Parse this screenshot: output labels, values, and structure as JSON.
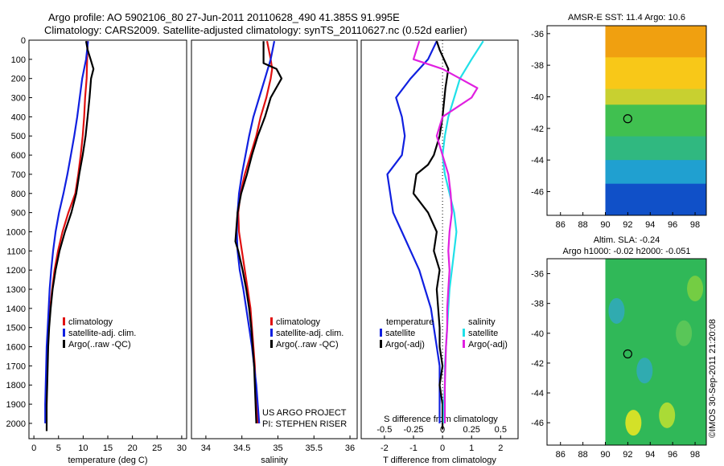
{
  "title_line1": "Argo profile: AO 5902106_80 27-Jun-2011 20110628_490 41.385S 91.995E",
  "title_line2": "Climatology: CARS2009. Satellite-adjusted climatology: synTS_20110627.nc (0.52d earlier)",
  "project_line1": "US ARGO PROJECT",
  "project_line2": "PI: STEPHEN RISER",
  "credit": "©IMOS 30-Sep-2011 21:20:08",
  "map1_title": "AMSR-E SST: 11.4 Argo: 10.6",
  "map2_title1": "Altim. SLA: -0.24",
  "map2_title2": "Argo h1000: -0.02 h2000: -0.051",
  "colors": {
    "red": "#e01010",
    "blue": "#1020e0",
    "black": "#000000",
    "cyan": "#20e0e8",
    "magenta": "#e020e0"
  },
  "chart_data": [
    {
      "type": "line",
      "xlabel": "temperature (deg C)",
      "ylabel": "",
      "xlim": [
        -1,
        31
      ],
      "ylim": [
        2080,
        0
      ],
      "xticks": [
        0,
        5,
        10,
        15,
        20,
        25,
        30
      ],
      "yticks": [
        0,
        100,
        200,
        300,
        400,
        500,
        600,
        700,
        800,
        900,
        1000,
        1100,
        1200,
        1300,
        1400,
        1500,
        1600,
        1700,
        1800,
        1900,
        2000
      ],
      "legend": [
        "climatology",
        "satellite-adj. clim.",
        "Argo(..raw -QC)"
      ],
      "series": [
        {
          "name": "climatology",
          "color": "red",
          "x": [
            10.9,
            10.8,
            10.7,
            10.4,
            10.2,
            9.9,
            9.5,
            9.0,
            8.4,
            7.0,
            5.8,
            4.9,
            4.2,
            3.7,
            3.3,
            3.0,
            2.8,
            2.7,
            2.6,
            2.6,
            2.5
          ],
          "y": [
            5,
            100,
            200,
            300,
            400,
            500,
            600,
            700,
            800,
            900,
            1000,
            1100,
            1200,
            1300,
            1400,
            1500,
            1600,
            1700,
            1800,
            1900,
            2000
          ]
        },
        {
          "name": "satellite-adj. clim.",
          "color": "blue",
          "x": [
            11.0,
            10.6,
            9.8,
            9.3,
            8.8,
            8.2,
            7.5,
            6.8,
            6.0,
            5.1,
            4.4,
            3.9,
            3.5,
            3.2,
            3.0,
            2.8,
            2.6,
            2.5,
            2.4,
            2.3,
            2.3
          ],
          "y": [
            5,
            100,
            200,
            300,
            400,
            500,
            600,
            700,
            800,
            900,
            1000,
            1100,
            1200,
            1300,
            1400,
            1500,
            1600,
            1700,
            1800,
            1900,
            2000
          ]
        },
        {
          "name": "Argo(..raw -QC)",
          "color": "black",
          "x": [
            10.6,
            10.9,
            11.5,
            12.1,
            11.6,
            11.3,
            10.9,
            10.5,
            9.9,
            9.2,
            8.6,
            7.6,
            6.3,
            5.2,
            4.4,
            3.8,
            3.4,
            3.1,
            2.9,
            2.8,
            2.7,
            2.6,
            2.6,
            2.6
          ],
          "y": [
            5,
            50,
            100,
            150,
            200,
            300,
            400,
            500,
            600,
            700,
            800,
            900,
            1000,
            1100,
            1200,
            1300,
            1400,
            1500,
            1600,
            1700,
            1800,
            1900,
            2000,
            2040
          ]
        }
      ]
    },
    {
      "type": "line",
      "xlabel": "salinity",
      "ylabel": "",
      "xlim": [
        33.8,
        36.1
      ],
      "ylim": [
        2080,
        0
      ],
      "xticks": [
        34,
        34.5,
        35,
        35.5,
        36
      ],
      "legend": [
        "climatology",
        "satellite-adj. clim.",
        "Argo(..raw -QC)"
      ],
      "series": [
        {
          "name": "climatology",
          "color": "red",
          "x": [
            34.85,
            34.9,
            34.92,
            34.9,
            34.84,
            34.76,
            34.7,
            34.62,
            34.54,
            34.48,
            34.45,
            34.46,
            34.5,
            34.54,
            34.58,
            34.62,
            34.64,
            34.66,
            34.68,
            34.69,
            34.7,
            34.72
          ],
          "y": [
            5,
            100,
            150,
            200,
            300,
            400,
            500,
            600,
            700,
            800,
            900,
            1000,
            1100,
            1200,
            1300,
            1400,
            1500,
            1600,
            1700,
            1800,
            1900,
            2000
          ]
        },
        {
          "name": "satellite-adj. clim.",
          "color": "blue",
          "x": [
            34.95,
            34.9,
            34.82,
            34.74,
            34.66,
            34.6,
            34.55,
            34.5,
            34.46,
            34.44,
            34.43,
            34.44,
            34.47,
            34.52,
            34.56,
            34.6,
            34.64,
            34.67,
            34.7,
            34.72,
            34.74
          ],
          "y": [
            5,
            100,
            200,
            300,
            400,
            500,
            600,
            700,
            800,
            900,
            1000,
            1100,
            1200,
            1300,
            1400,
            1500,
            1600,
            1700,
            1800,
            1900,
            2000
          ]
        },
        {
          "name": "Argo(..raw -QC)",
          "color": "black",
          "x": [
            34.8,
            34.8,
            34.98,
            35.05,
            34.9,
            34.82,
            34.72,
            34.64,
            34.57,
            34.49,
            34.44,
            34.42,
            34.41,
            34.45,
            34.51,
            34.56,
            34.6,
            34.63,
            34.65,
            34.67,
            34.68,
            34.69,
            34.7
          ],
          "y": [
            5,
            120,
            150,
            200,
            300,
            400,
            500,
            600,
            700,
            800,
            900,
            1000,
            1050,
            1100,
            1200,
            1300,
            1400,
            1500,
            1600,
            1700,
            1800,
            1900,
            2000
          ]
        }
      ]
    },
    {
      "type": "line",
      "xlabel": "T difference from climatology",
      "xlabel_top": "S difference from climatology",
      "ylabel": "",
      "xlim": [
        -2.8,
        2.6
      ],
      "ylim": [
        2080,
        0
      ],
      "xticks": [
        -2,
        -1,
        0,
        1,
        2
      ],
      "xtick_labels": [
        "-2",
        "-1",
        "0",
        "1",
        "2"
      ],
      "xticks_top": [
        -0.5,
        -0.25,
        0,
        0.25,
        0.5
      ],
      "xtick_top_labels": [
        "-0.5",
        "-0.25",
        "0",
        "0.25",
        "0.5"
      ],
      "legend_groups": {
        "temperature": [
          "satellite",
          "Argo(-adj)"
        ],
        "salinity": [
          "satellite",
          "Argo(-adj)"
        ]
      },
      "series": [
        {
          "name": "temperature satellite",
          "color": "blue",
          "x_units": "T",
          "x": [
            -0.2,
            -0.5,
            -1.1,
            -1.6,
            -1.4,
            -1.3,
            -1.4,
            -1.9,
            -1.8,
            -1.7,
            -1.4,
            -1.1,
            -0.8,
            -0.6,
            -0.4,
            -0.3,
            -0.2,
            -0.1,
            -0.1,
            -0.1,
            -0.1
          ],
          "y": [
            5,
            100,
            200,
            300,
            400,
            500,
            600,
            700,
            800,
            900,
            1000,
            1100,
            1200,
            1300,
            1400,
            1500,
            1600,
            1700,
            1800,
            1900,
            2000
          ]
        },
        {
          "name": "temperature Argo(-adj)",
          "color": "black",
          "x_units": "T",
          "x": [
            -0.2,
            -0.1,
            0.2,
            0.1,
            0.0,
            -0.1,
            -0.3,
            -0.5,
            -0.9,
            -1.0,
            -0.5,
            -0.2,
            -0.3,
            -0.1,
            -0.2,
            -0.1,
            -0.1,
            0.0,
            -0.1,
            0.0,
            0.0,
            0.0
          ],
          "y": [
            5,
            50,
            150,
            250,
            400,
            500,
            600,
            650,
            700,
            800,
            900,
            1000,
            1100,
            1200,
            1300,
            1500,
            1600,
            1700,
            1800,
            1900,
            2000,
            2030
          ]
        },
        {
          "name": "salinity satellite",
          "color": "cyan",
          "x_units": "S",
          "x": [
            0.35,
            0.25,
            0.15,
            0.1,
            0.05,
            0.02,
            0.0,
            0.02,
            0.06,
            0.1,
            0.12,
            0.1,
            0.08,
            0.06,
            0.05,
            0.04,
            0.03,
            0.02,
            0.02,
            0.01,
            0.01
          ],
          "y": [
            5,
            100,
            200,
            300,
            400,
            500,
            600,
            700,
            800,
            900,
            1000,
            1100,
            1200,
            1300,
            1400,
            1500,
            1600,
            1700,
            1800,
            1900,
            2000
          ]
        },
        {
          "name": "salinity Argo(-adj)",
          "color": "magenta",
          "x_units": "S",
          "x": [
            -0.2,
            -0.25,
            0.0,
            0.15,
            0.3,
            0.25,
            0.0,
            -0.05,
            0.0,
            0.05,
            0.07,
            0.08,
            0.06,
            0.05,
            0.06,
            0.05,
            0.04,
            0.04,
            0.03,
            0.02,
            0.02
          ],
          "y": [
            5,
            100,
            150,
            200,
            250,
            300,
            400,
            500,
            600,
            700,
            800,
            900,
            1000,
            1100,
            1200,
            1300,
            1400,
            1500,
            1600,
            1800,
            2000
          ]
        }
      ]
    },
    {
      "type": "heatmap",
      "title": "AMSR-E SST: 11.4 Argo: 10.6",
      "xlim": [
        84.8,
        99.0
      ],
      "ylim": [
        -47.5,
        -35.5
      ],
      "xticks": [
        86,
        88,
        90,
        92,
        94,
        96,
        98
      ],
      "yticks": [
        -36,
        -38,
        -40,
        -42,
        -44,
        -46
      ],
      "data_x_start": 90,
      "marker": {
        "lon": 91.995,
        "lat": -41.385
      },
      "bands": [
        {
          "lat_from": -35.5,
          "lat_to": -37.5,
          "color": "#f0a010"
        },
        {
          "lat_from": -37.5,
          "lat_to": -39.5,
          "color": "#f8c818"
        },
        {
          "lat_from": -39.5,
          "lat_to": -40.5,
          "color": "#c8d030"
        },
        {
          "lat_from": -40.5,
          "lat_to": -42.5,
          "color": "#40c050"
        },
        {
          "lat_from": -42.5,
          "lat_to": -44.0,
          "color": "#30b880"
        },
        {
          "lat_from": -44.0,
          "lat_to": -45.5,
          "color": "#20a0d0"
        },
        {
          "lat_from": -45.5,
          "lat_to": -47.5,
          "color": "#1050c8"
        }
      ]
    },
    {
      "type": "heatmap",
      "title": "Altim. SLA: -0.24",
      "subtitle": "Argo h1000: -0.02 h2000: -0.051",
      "xlim": [
        84.8,
        99.0
      ],
      "ylim": [
        -47.5,
        -35.0
      ],
      "xticks": [
        86,
        88,
        90,
        92,
        94,
        96,
        98
      ],
      "yticks": [
        -36,
        -38,
        -40,
        -42,
        -44,
        -46
      ],
      "data_x_start": 90,
      "marker": {
        "lon": 91.995,
        "lat": -41.385
      },
      "base_color": "#30b858",
      "spots": [
        {
          "lon": 91.0,
          "lat": -38.5,
          "color": "#30a8c0"
        },
        {
          "lon": 93.5,
          "lat": -42.5,
          "color": "#30a8c0"
        },
        {
          "lon": 97.0,
          "lat": -40.0,
          "color": "#60c858"
        },
        {
          "lon": 95.5,
          "lat": -45.5,
          "color": "#c0e030"
        },
        {
          "lon": 92.5,
          "lat": -46.0,
          "color": "#f0e820"
        },
        {
          "lon": 98.0,
          "lat": -37.0,
          "color": "#80d040"
        }
      ]
    }
  ]
}
